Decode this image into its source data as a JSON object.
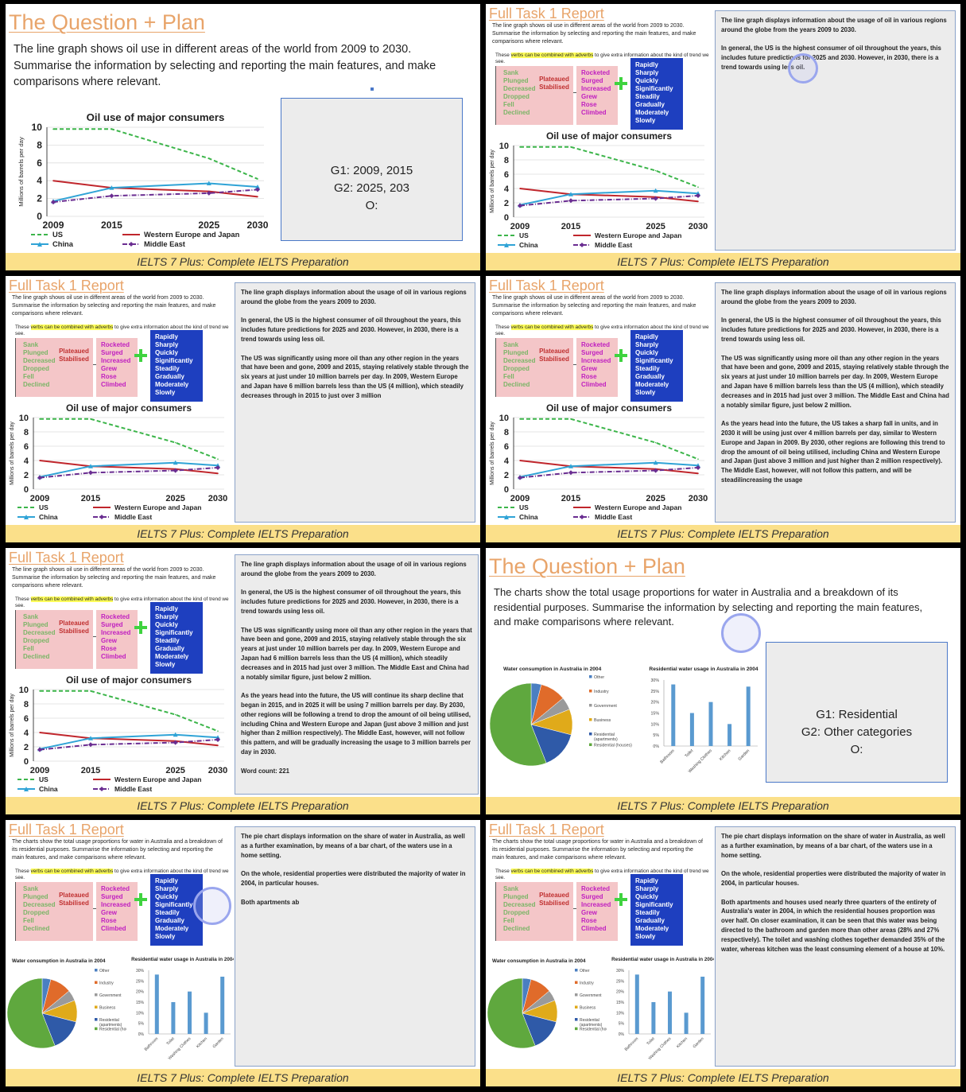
{
  "footer_text": "IELTS 7 Plus: Complete IELTS Preparation",
  "titles": {
    "plan": "The Question + Plan",
    "report": "Full Task 1 Report"
  },
  "oil": {
    "question": "The line graph shows oil use in different areas of the world from 2009 to 2030. Summarise the information by selecting and reporting the main features, and make comparisons where relevant.",
    "chart_title": "Oil use of major consumers",
    "ylabel": "Millions of barrels per day",
    "legend": [
      "US",
      "Western Europe and Japan",
      "China",
      "Middle East"
    ],
    "plan_lines": [
      "G1: 2009, 2015",
      "G2: 2025, 203",
      "O:"
    ]
  },
  "water": {
    "question": "The charts show the total usage proportions for water in Australia and a breakdown of its residential purposes. Summarise the information by selecting and reporting the main features, and make comparisons where relevant.",
    "pie_title": "Water consumption in Australia in 2004",
    "bar_title": "Residential water usage in Australia in 2004",
    "pie_legend": [
      "Other",
      "Industry",
      "Government",
      "Business",
      "Residential (apartments)",
      "Residential (houses)"
    ],
    "plan_lines": [
      "G1: Residential",
      "G2: Other categories",
      "O:"
    ]
  },
  "verb_note": {
    "pre": "These ",
    "hl": "verbs can be combined with adverbs",
    "post": " to give extra information about the kind of trend we see."
  },
  "verbs": {
    "down": [
      "Sank",
      "Plunged",
      "Decreased",
      "Dropped",
      "Fell",
      "Declined"
    ],
    "flat": [
      "Plateaued",
      "Stabilised"
    ],
    "up": [
      "Rocketed",
      "Surged",
      "Increased",
      "Grew",
      "Rose",
      "Climbed"
    ],
    "adverbs": [
      "Rapidly",
      "Sharply",
      "Quickly",
      "Significantly",
      "Steadily",
      "Gradually",
      "Moderately",
      "Slowly"
    ]
  },
  "essays": {
    "oil_1": [
      "The line graph displays information about the usage of oil in various regions around the globe from the years 2009 to 2030.",
      "In general, the US is the highest consumer of oil throughout the years, this includes future predictions for 2025 and 2030. However, in 2030, there is a trend towards using less oil."
    ],
    "oil_2": [
      "The line graph displays information about the usage of oil in various regions around the globe from the years 2009 to 2030.",
      "In general, the US is the highest consumer of oil throughout the years, this includes future predictions for 2025 and 2030. However, in 2030, there is a trend towards using less oil.",
      "The US was significantly using more oil than any other region in the years that have been and gone, 2009 and 2015, staying relatively stable through the six years at just under 10 million barrels per day. In 2009, Western Europe and Japan have 6 million barrels less than the US (4 million), which steadily decreases through in 2015 to just over 3 million"
    ],
    "oil_3": [
      "The line graph displays information about the usage of oil in various regions around the globe from the years 2009 to 2030.",
      "In general, the US is the highest consumer of oil throughout the years, this includes future predictions for 2025 and 2030. However, in 2030, there is a trend towards using less oil.",
      "The US was significantly using more oil than any other region in the years that have been and gone, 2009 and 2015, staying relatively stable through the six years at just under 10 million barrels per day. In 2009, Western Europe and Japan have 6 million barrels less than the US (4 million), which steadily decreases and in 2015 had just over 3 million. The Middle East and China had a notably similar figure, just below 2 million.",
      "As the years head into the future, the US takes a sharp fall in units, and in 2030 it will be using just over 4 million barrels per day, similar to Western Europe and Japan in 2009. By 2030, other regions are following this trend to drop the amount of oil being utilised, including China and Western Europe and Japan (just above 3 million and just higher than 2 million respectively). The Middle East, however, will not follow this pattern, and will be steadilincreasing the usage"
    ],
    "oil_4": [
      "The line graph displays information about the usage of oil in various regions around the globe from the years 2009 to 2030.",
      "In general, the US is the highest consumer of oil throughout the years, this includes future predictions for 2025 and 2030. However, in 2030, there is a trend towards using less oil.",
      "The US was significantly using more oil than any other region in the years that have been and gone, 2009 and 2015, staying relatively stable through the six years at just under 10 million barrels per day. In 2009, Western Europe and Japan had 6 million barrels less than the US (4 million), which steadily decreases and in 2015 had just over 3 million. The Middle East and China had a notably similar figure, just below 2 million.",
      "As the years head into the future, the US will continue its sharp decline that began in 2015, and in 2025 it will be using 7 million barrels per day. By 2030, other regions will be following a trend to drop the amount of oil being utilised, including China and Western Europe and Japan (just above 3 million and just higher than 2 million respectively). The Middle East, however, will not follow this pattern, and will be gradually increasing the usage to 3 million barrels per day in 2030.",
      "Word count: 221"
    ],
    "water_1": [
      "The pie chart displays information on the share of water in Australia, as well as a further examination, by means of a bar chart, of the waters use in a home setting.",
      "On the whole, residential properties were distributed the majority of water in 2004, in particular houses.",
      "Both apartments ab"
    ],
    "water_2": [
      "The pie chart displays information on the share of water in Australia, as well as a further examination, by means of a bar chart, of the waters use in a home setting.",
      "On the whole, residential properties were distributed the majority of water in 2004, in particular houses.",
      "Both apartments and houses used nearly three quarters of the entirety of Australia's water in 2004, in which the residential houses proportion was over half. On closer examination, it can be seen that this water was being directed to the bathroom and garden more than other areas (28% and 27% respectively). The toilet and washing clothes together demanded 35% of the water, whereas kitchen was the least consuming element of a house at 10%."
    ]
  },
  "colors": {
    "us": "#3cb54a",
    "weu": "#c0262c",
    "china": "#2fa3d6",
    "me": "#6a2d91",
    "accent": "#e8a46a",
    "footer": "#fbe08a"
  },
  "chart_data": [
    {
      "type": "line",
      "title": "Oil use of major consumers",
      "ylabel": "Millions of barrels per day",
      "x": [
        2009,
        2015,
        2025,
        2030
      ],
      "ylim": [
        0,
        10
      ],
      "yticks": [
        0,
        2,
        4,
        6,
        8,
        10
      ],
      "series": [
        {
          "name": "US",
          "values": [
            9.8,
            9.8,
            6.5,
            4.2
          ]
        },
        {
          "name": "Western Europe and Japan",
          "values": [
            4,
            3.2,
            2.8,
            2.2
          ]
        },
        {
          "name": "China",
          "values": [
            1.7,
            3.2,
            3.7,
            3.3
          ]
        },
        {
          "name": "Middle East",
          "values": [
            1.6,
            2.3,
            2.6,
            3.0
          ]
        }
      ]
    },
    {
      "type": "pie",
      "title": "Water consumption in Australia in 2004",
      "categories": [
        "Other",
        "Industry",
        "Government",
        "Business",
        "Residential (apartments)",
        "Residential (houses)"
      ],
      "values": [
        4,
        10,
        5,
        10,
        15,
        56
      ]
    },
    {
      "type": "bar",
      "title": "Residential water usage in Australia in 2004",
      "categories": [
        "Bathroom",
        "Toilet",
        "Washing Clothes",
        "Kitchen",
        "Garden"
      ],
      "values": [
        28,
        15,
        20,
        10,
        27
      ],
      "ylim": [
        0,
        30
      ],
      "yticks": [
        "0%",
        "5%",
        "10%",
        "15%",
        "20%",
        "25%",
        "30%"
      ]
    }
  ]
}
